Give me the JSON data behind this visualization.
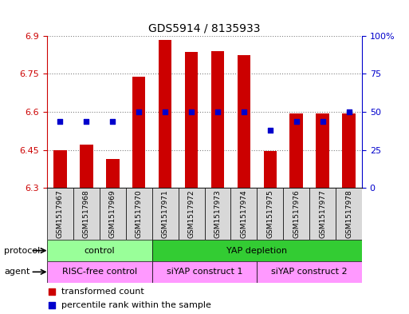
{
  "title": "GDS5914 / 8135933",
  "samples": [
    "GSM1517967",
    "GSM1517968",
    "GSM1517969",
    "GSM1517970",
    "GSM1517971",
    "GSM1517972",
    "GSM1517973",
    "GSM1517974",
    "GSM1517975",
    "GSM1517976",
    "GSM1517977",
    "GSM1517978"
  ],
  "bar_values": [
    6.45,
    6.47,
    6.415,
    6.74,
    6.885,
    6.835,
    6.84,
    6.825,
    6.445,
    6.595,
    6.595,
    6.595
  ],
  "blue_values": [
    44,
    44,
    44,
    50,
    50,
    50,
    50,
    50,
    38,
    44,
    44,
    50
  ],
  "ymin": 6.3,
  "ymax": 6.9,
  "yticks": [
    6.3,
    6.45,
    6.6,
    6.75,
    6.9
  ],
  "ytick_labels": [
    "6.3",
    "6.45",
    "6.6",
    "6.75",
    "6.9"
  ],
  "y2ticks": [
    0,
    25,
    50,
    75,
    100
  ],
  "y2tick_labels": [
    "0",
    "25",
    "50",
    "75",
    "100%"
  ],
  "bar_color": "#cc0000",
  "blue_color": "#0000cc",
  "protocol_control_color": "#99ff99",
  "protocol_yap_color": "#33cc33",
  "agent_color": "#ff99ff",
  "bg_color": "#d8d8d8",
  "protocol_control_label": "control",
  "protocol_yap_label": "YAP depletion",
  "agent_risc_label": "RISC-free control",
  "agent_siyap1_label": "siYAP construct 1",
  "agent_siyap2_label": "siYAP construct 2",
  "protocol_label": "protocol",
  "agent_label": "agent",
  "legend1": "transformed count",
  "legend2": "percentile rank within the sample",
  "bar_bottom": 6.3,
  "bar_width": 0.5
}
